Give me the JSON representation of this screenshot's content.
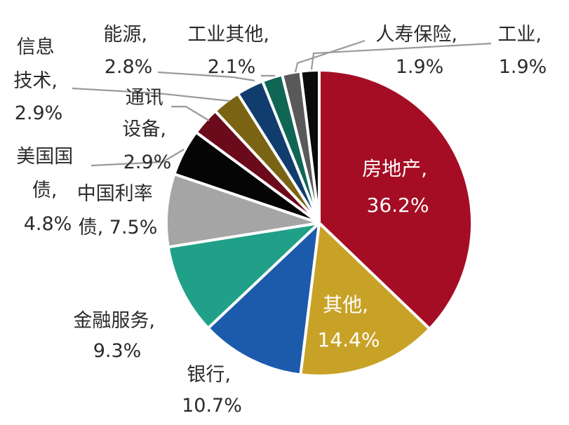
{
  "chart_data": {
    "type": "pie",
    "slices": [
      {
        "name": "房地产",
        "value": 36.2,
        "display": "36.2%",
        "color": "#a50d24"
      },
      {
        "name": "其他",
        "value": 14.4,
        "display": "14.4%",
        "color": "#c8a227"
      },
      {
        "name": "银行",
        "value": 10.7,
        "display": "10.7%",
        "color": "#1c5aac"
      },
      {
        "name": "金融服务",
        "value": 9.3,
        "display": "9.3%",
        "color": "#21a089"
      },
      {
        "name": "中国利率债",
        "value": 7.5,
        "display": "7.5%",
        "color": "#a5a5a5"
      },
      {
        "name": "美国国债",
        "value": 4.8,
        "display": "4.8%",
        "color": "#050505"
      },
      {
        "name": "通讯设备",
        "value": 2.9,
        "display": "2.9%",
        "color": "#6b0a1a"
      },
      {
        "name": "信息技术",
        "value": 2.9,
        "display": "2.9%",
        "color": "#7a6312"
      },
      {
        "name": "能源",
        "value": 2.8,
        "display": "2.8%",
        "color": "#103d6e"
      },
      {
        "name": "工业其他",
        "value": 2.1,
        "display": "2.1%",
        "color": "#0f6655"
      },
      {
        "name": "人寿保险",
        "value": 1.9,
        "display": "1.9%",
        "color": "#595959"
      },
      {
        "name": "工业",
        "value": 1.9,
        "display": "1.9%",
        "color": "#0a0a0a"
      }
    ]
  },
  "labels": {
    "real_estate": [
      "房地产,",
      "36.2%"
    ],
    "other": [
      "其他,",
      "14.4%"
    ],
    "bank": [
      "银行,",
      "10.7%"
    ],
    "financial": [
      "金融服务,",
      "9.3%"
    ],
    "cn_bond": [
      "中国利率",
      "债, 7.5%"
    ],
    "us_bond": [
      "美国国",
      "债,",
      "4.8%"
    ],
    "telecom": [
      "通讯",
      "设备,",
      "2.9%"
    ],
    "it": [
      "信息",
      "技术,",
      "2.9%"
    ],
    "energy": [
      "能源,",
      "2.8%"
    ],
    "ind_other": [
      "工业其他,",
      "2.1%"
    ],
    "life_ins": [
      "人寿保险,",
      "1.9%"
    ],
    "industry": [
      "工业,",
      "1.9%"
    ]
  }
}
